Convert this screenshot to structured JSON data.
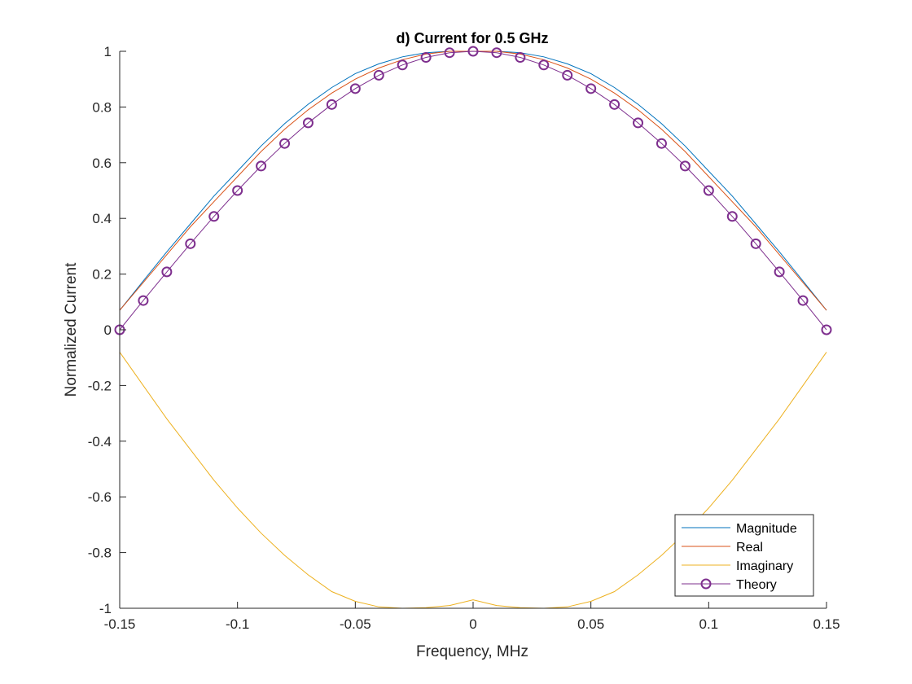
{
  "chart_data": {
    "type": "line",
    "title": "d) Current for 0.5 GHz",
    "xlabel": "Frequency, MHz",
    "ylabel": "Normalized Current",
    "xlim": [
      -0.15,
      0.15
    ],
    "ylim": [
      -1,
      1
    ],
    "x_ticks": [
      "-0.15",
      "-0.1",
      "-0.05",
      "0",
      "0.05",
      "0.1",
      "0.15"
    ],
    "y_ticks": [
      "-1",
      "-0.8",
      "-0.6",
      "-0.4",
      "-0.2",
      "0",
      "0.2",
      "0.4",
      "0.6",
      "0.8",
      "1"
    ],
    "grid": false,
    "legend_position": "bottom-right",
    "x": [
      -0.15,
      -0.14,
      -0.13,
      -0.12,
      -0.11,
      -0.1,
      -0.09,
      -0.08,
      -0.07,
      -0.06,
      -0.05,
      -0.04,
      -0.03,
      -0.02,
      -0.01,
      0,
      0.01,
      0.02,
      0.03,
      0.04,
      0.05,
      0.06,
      0.07,
      0.08,
      0.09,
      0.1,
      0.11,
      0.12,
      0.13,
      0.14,
      0.15
    ],
    "series": [
      {
        "name": "Magnitude",
        "color": "#0072BD",
        "marker": "none",
        "values": [
          0.07,
          0.175,
          0.28,
          0.38,
          0.48,
          0.57,
          0.66,
          0.74,
          0.81,
          0.87,
          0.92,
          0.955,
          0.98,
          0.995,
          1.0,
          1.0,
          1.0,
          0.995,
          0.98,
          0.955,
          0.92,
          0.87,
          0.81,
          0.74,
          0.66,
          0.57,
          0.48,
          0.38,
          0.28,
          0.175,
          0.07
        ]
      },
      {
        "name": "Real",
        "color": "#D95319",
        "marker": "none",
        "values": [
          0.07,
          0.17,
          0.27,
          0.37,
          0.46,
          0.55,
          0.64,
          0.72,
          0.79,
          0.85,
          0.9,
          0.94,
          0.97,
          0.99,
          1.0,
          1.0,
          1.0,
          0.99,
          0.97,
          0.94,
          0.9,
          0.85,
          0.79,
          0.72,
          0.64,
          0.55,
          0.46,
          0.37,
          0.27,
          0.17,
          0.07
        ]
      },
      {
        "name": "Imaginary",
        "color": "#EDB120",
        "marker": "none",
        "values": [
          -0.08,
          -0.2,
          -0.32,
          -0.43,
          -0.54,
          -0.64,
          -0.73,
          -0.81,
          -0.88,
          -0.94,
          -0.975,
          -0.995,
          -1.0,
          -0.998,
          -0.99,
          -0.97,
          -0.99,
          -0.998,
          -1.0,
          -0.995,
          -0.975,
          -0.94,
          -0.88,
          -0.81,
          -0.73,
          -0.64,
          -0.54,
          -0.43,
          -0.32,
          -0.2,
          -0.08
        ]
      },
      {
        "name": "Theory",
        "color": "#7E2F8E",
        "marker": "o",
        "values": [
          0.0,
          0.105,
          0.208,
          0.309,
          0.407,
          0.5,
          0.588,
          0.669,
          0.743,
          0.809,
          0.866,
          0.914,
          0.951,
          0.978,
          0.995,
          1.0,
          0.995,
          0.978,
          0.951,
          0.914,
          0.866,
          0.809,
          0.743,
          0.669,
          0.588,
          0.5,
          0.407,
          0.309,
          0.208,
          0.105,
          0.0
        ]
      }
    ]
  }
}
